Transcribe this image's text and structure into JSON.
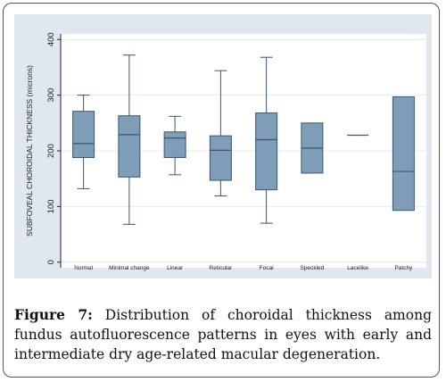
{
  "caption": {
    "label": "Figure 7:",
    "text": "Distribution of choroidal thickness among fundus autofluorescence patterns in eyes with early and intermediate dry age-related macular degeneration."
  },
  "chart_data": {
    "type": "box",
    "ylabel": "SUBFOVEAL CHOROIDAL THICKNESS (microns)",
    "ylim": [
      -10,
      410
    ],
    "yticks": [
      0,
      100,
      200,
      300,
      400
    ],
    "grid": "horizontal",
    "box_color": "#7f9cb8",
    "categories": [
      "Normal",
      "Minimal change",
      "Linear",
      "Reticular",
      "Focal",
      "Speckled",
      "Lacelike",
      "Patchy"
    ],
    "boxes": [
      {
        "category": "Normal",
        "min": 132,
        "q1": 188,
        "median": 213,
        "q3": 271,
        "max": 300
      },
      {
        "category": "Minimal change",
        "min": 68,
        "q1": 153,
        "median": 229,
        "q3": 263,
        "max": 372
      },
      {
        "category": "Linear",
        "min": 157,
        "q1": 188,
        "median": 223,
        "q3": 234,
        "max": 262
      },
      {
        "category": "Reticular",
        "min": 119,
        "q1": 147,
        "median": 201,
        "q3": 227,
        "max": 344
      },
      {
        "category": "Focal",
        "min": 70,
        "q1": 130,
        "median": 220,
        "q3": 268,
        "max": 368
      },
      {
        "category": "Speckled",
        "min": 160,
        "q1": 160,
        "median": 205,
        "q3": 250,
        "max": 250
      },
      {
        "category": "Lacelike",
        "min": 228,
        "q1": 228,
        "median": 228,
        "q3": 228,
        "max": 228
      },
      {
        "category": "Patchy",
        "min": 93,
        "q1": 93,
        "median": 163,
        "q3": 297,
        "max": 297
      }
    ]
  }
}
